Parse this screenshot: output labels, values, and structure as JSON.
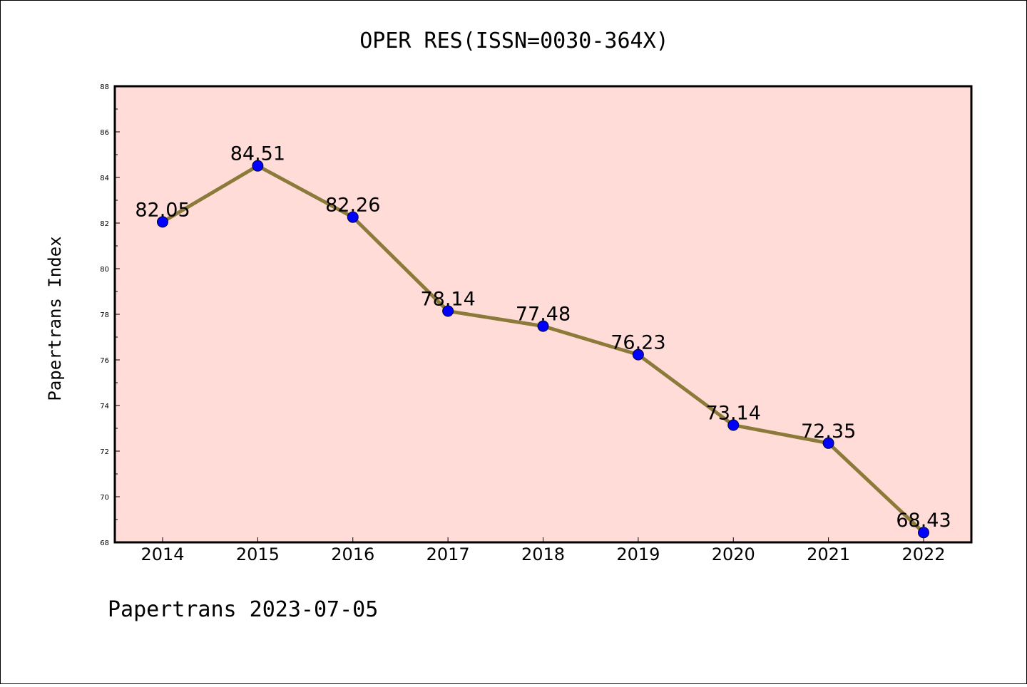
{
  "chart_data": {
    "type": "line",
    "title": "OPER RES(ISSN=0030-364X)",
    "xlabel": "",
    "ylabel": "Papertrans Index",
    "x": [
      "2014",
      "2015",
      "2016",
      "2017",
      "2018",
      "2019",
      "2020",
      "2021",
      "2022"
    ],
    "series": [
      {
        "values": [
          82.05,
          84.51,
          82.26,
          78.14,
          77.48,
          76.23,
          73.14,
          72.35,
          68.43
        ],
        "labels": [
          "82.05",
          "84.51",
          "82.26",
          "78.14",
          "77.48",
          "76.23",
          "73.14",
          "72.35",
          "68.43"
        ]
      }
    ],
    "ylim": [
      68,
      88
    ],
    "yticks": [
      "68",
      "70",
      "72",
      "74",
      "76",
      "78",
      "80",
      "82",
      "84",
      "86",
      "88"
    ],
    "grid": false,
    "colors": {
      "plot_background": "#ffdcd8",
      "line": "#8b7a3a",
      "marker": "#0000ff"
    }
  },
  "footer": {
    "text": "Papertrans 2023-07-05"
  }
}
